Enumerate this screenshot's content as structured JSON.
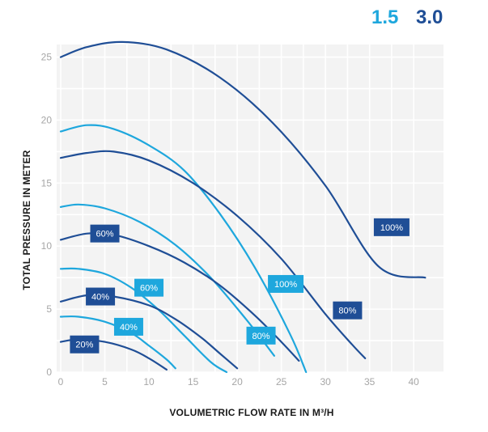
{
  "chart_data": {
    "type": "line",
    "xlabel": "VOLUMETRIC FLOW RATE IN M³/H",
    "ylabel": "TOTAL PRESSURE IN METER",
    "xlim": [
      0,
      42
    ],
    "ylim": [
      0,
      26
    ],
    "x_ticks": [
      "0",
      "5",
      "10",
      "15",
      "20",
      "25",
      "30",
      "35",
      "40"
    ],
    "y_ticks": [
      "0",
      "5",
      "10",
      "15",
      "20",
      "25"
    ],
    "grid": true,
    "legend_position": "top-right",
    "legend": [
      {
        "label": "1.5",
        "color": "#1ea7dd"
      },
      {
        "label": "3.0",
        "color": "#1f4e96"
      }
    ],
    "series": [
      {
        "group": "1.5",
        "label": "100%",
        "color": "#1ea7dd",
        "label_fill": "#1ea7dd",
        "points": [
          [
            0,
            19.1
          ],
          [
            3,
            19.6
          ],
          [
            6,
            19.3
          ],
          [
            10,
            18.0
          ],
          [
            14,
            16.0
          ],
          [
            18,
            12.6
          ],
          [
            22,
            8.3
          ],
          [
            26,
            3.0
          ],
          [
            27.8,
            0
          ]
        ]
      },
      {
        "group": "1.5",
        "label": "80%",
        "color": "#1ea7dd",
        "label_fill": "#1ea7dd",
        "points": [
          [
            0,
            13.1
          ],
          [
            2,
            13.3
          ],
          [
            5,
            13.0
          ],
          [
            9,
            11.9
          ],
          [
            13,
            10.1
          ],
          [
            17,
            7.5
          ],
          [
            21,
            4.2
          ],
          [
            24.2,
            1.3
          ]
        ]
      },
      {
        "group": "1.5",
        "label": "60%",
        "color": "#1ea7dd",
        "label_fill": "#1ea7dd",
        "points": [
          [
            0,
            8.2
          ],
          [
            2,
            8.2
          ],
          [
            5,
            7.8
          ],
          [
            8,
            6.7
          ],
          [
            11,
            5.0
          ],
          [
            14,
            2.9
          ],
          [
            17,
            0.8
          ],
          [
            18.8,
            0
          ]
        ]
      },
      {
        "group": "1.5",
        "label": "40%",
        "color": "#1ea7dd",
        "label_fill": "#1ea7dd",
        "points": [
          [
            0,
            4.4
          ],
          [
            2,
            4.4
          ],
          [
            5,
            4.0
          ],
          [
            8,
            3.1
          ],
          [
            10,
            2.1
          ],
          [
            12,
            1.0
          ],
          [
            13,
            0.3
          ]
        ]
      },
      {
        "group": "3.0",
        "label": "100%",
        "color": "#1f4e96",
        "label_fill": "#1f4e96",
        "points": [
          [
            0,
            25.0
          ],
          [
            3,
            25.8
          ],
          [
            7,
            26.2
          ],
          [
            12,
            25.6
          ],
          [
            18,
            23.4
          ],
          [
            24,
            19.8
          ],
          [
            30,
            14.8
          ],
          [
            36,
            8.4
          ],
          [
            41.3,
            7.5
          ]
        ]
      },
      {
        "group": "3.0",
        "label": "80%",
        "color": "#1f4e96",
        "label_fill": "#1f4e96",
        "points": [
          [
            0,
            17.0
          ],
          [
            3,
            17.4
          ],
          [
            6,
            17.5
          ],
          [
            10,
            16.8
          ],
          [
            15,
            15.0
          ],
          [
            20,
            12.4
          ],
          [
            25,
            9.0
          ],
          [
            30,
            4.6
          ],
          [
            33,
            2.2
          ],
          [
            34.5,
            1.1
          ]
        ]
      },
      {
        "group": "3.0",
        "label": "60%",
        "color": "#1f4e96",
        "label_fill": "#1f4e96",
        "points": [
          [
            0,
            10.5
          ],
          [
            3,
            11.0
          ],
          [
            6,
            10.9
          ],
          [
            10,
            10.0
          ],
          [
            14,
            8.7
          ],
          [
            18,
            6.9
          ],
          [
            22,
            4.5
          ],
          [
            25,
            2.4
          ],
          [
            27,
            0.9
          ]
        ]
      },
      {
        "group": "3.0",
        "label": "40%",
        "color": "#1f4e96",
        "label_fill": "#1f4e96",
        "points": [
          [
            0,
            5.6
          ],
          [
            3,
            6.1
          ],
          [
            6,
            6.0
          ],
          [
            10,
            5.3
          ],
          [
            13,
            4.2
          ],
          [
            16,
            2.7
          ],
          [
            18,
            1.5
          ],
          [
            20,
            0.3
          ]
        ]
      },
      {
        "group": "3.0",
        "label": "20%",
        "color": "#1f4e96",
        "label_fill": "#1f4e96",
        "points": [
          [
            0,
            2.4
          ],
          [
            2,
            2.6
          ],
          [
            5,
            2.4
          ],
          [
            8,
            1.8
          ],
          [
            10,
            1.1
          ],
          [
            12,
            0.2
          ]
        ]
      }
    ],
    "annotations": [
      {
        "text": "60%",
        "x": 5.0,
        "y": 11.0,
        "fill": "#1f4e96"
      },
      {
        "text": "60%",
        "x": 10.0,
        "y": 6.7,
        "fill": "#1ea7dd"
      },
      {
        "text": "40%",
        "x": 4.5,
        "y": 6.0,
        "fill": "#1f4e96"
      },
      {
        "text": "40%",
        "x": 7.7,
        "y": 3.6,
        "fill": "#1ea7dd"
      },
      {
        "text": "20%",
        "x": 2.7,
        "y": 2.2,
        "fill": "#1f4e96"
      },
      {
        "text": "100%",
        "x": 25.5,
        "y": 7.0,
        "fill": "#1ea7dd"
      },
      {
        "text": "80%",
        "x": 22.7,
        "y": 2.9,
        "fill": "#1ea7dd"
      },
      {
        "text": "80%",
        "x": 32.5,
        "y": 4.9,
        "fill": "#1f4e96"
      },
      {
        "text": "100%",
        "x": 37.5,
        "y": 11.5,
        "fill": "#1f4e96"
      }
    ]
  }
}
